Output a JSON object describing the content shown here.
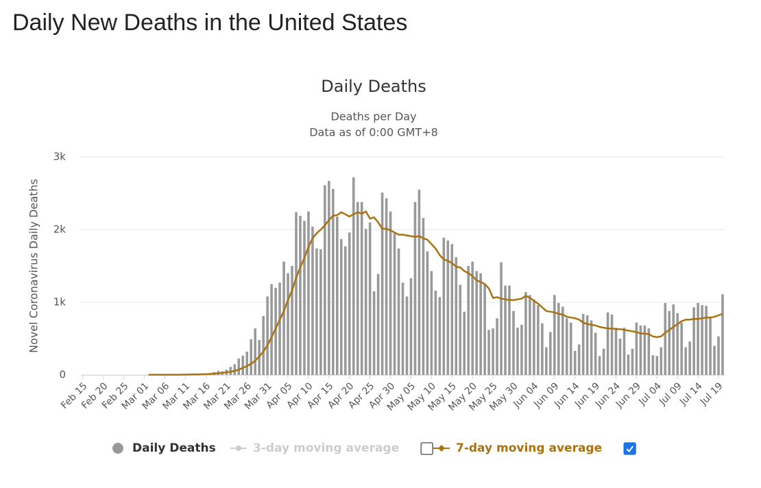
{
  "header": {
    "title": "Daily New Deaths in the United States"
  },
  "chart_data": {
    "type": "bar",
    "title": "Daily Deaths",
    "subtitle": [
      "Deaths per Day",
      "Data as of 0:00 GMT+8"
    ],
    "y_label": "Novel Coronavirus Daily Deaths",
    "ylim": [
      0,
      3000
    ],
    "yticks": [
      0,
      {
        "value": 1000,
        "label": "1k"
      },
      {
        "value": 2000,
        "label": "2k"
      },
      {
        "value": 3000,
        "label": "3k"
      }
    ],
    "grid": true,
    "categories": [
      "Feb 15",
      null,
      null,
      null,
      null,
      "Feb 20",
      null,
      null,
      null,
      null,
      "Feb 25",
      null,
      null,
      null,
      null,
      "Mar 01",
      null,
      null,
      null,
      null,
      "Mar 06",
      null,
      null,
      null,
      null,
      "Mar 11",
      null,
      null,
      null,
      null,
      "Mar 16",
      null,
      null,
      null,
      null,
      "Mar 21",
      null,
      null,
      null,
      null,
      "Mar 26",
      null,
      null,
      null,
      null,
      "Mar 31",
      null,
      null,
      null,
      null,
      "Apr 05",
      null,
      null,
      null,
      null,
      "Apr 10",
      null,
      null,
      null,
      null,
      "Apr 15",
      null,
      null,
      null,
      null,
      "Apr 20",
      null,
      null,
      null,
      null,
      "Apr 25",
      null,
      null,
      null,
      null,
      "Apr 30",
      null,
      null,
      null,
      null,
      "May 05",
      null,
      null,
      null,
      null,
      "May 10",
      null,
      null,
      null,
      null,
      "May 15",
      null,
      null,
      null,
      null,
      "May 20",
      null,
      null,
      null,
      null,
      "May 25",
      null,
      null,
      null,
      null,
      "May 30",
      null,
      null,
      null,
      null,
      "Jun 04",
      null,
      null,
      null,
      null,
      "Jun 09",
      null,
      null,
      null,
      null,
      "Jun 14",
      null,
      null,
      null,
      null,
      "Jun 19",
      null,
      null,
      null,
      null,
      "Jun 24",
      null,
      null,
      null,
      null,
      "Jun 29",
      null,
      null,
      null,
      null,
      "Jul 04",
      null,
      null,
      null,
      null,
      "Jul 09",
      null,
      null,
      null,
      null,
      "Jul 14",
      null,
      null,
      null,
      null,
      "Jul 19",
      null
    ],
    "series": [
      {
        "name": "Daily Deaths",
        "type": "bar",
        "color": "#999999",
        "visible": true,
        "values": [
          0,
          0,
          0,
          0,
          0,
          0,
          0,
          0,
          0,
          0,
          0,
          0,
          0,
          0,
          0,
          1,
          5,
          1,
          4,
          1,
          2,
          3,
          4,
          4,
          6,
          7,
          11,
          10,
          7,
          12,
          18,
          24,
          39,
          55,
          49,
          72,
          110,
          147,
          225,
          265,
          320,
          490,
          640,
          480,
          810,
          1080,
          1250,
          1200,
          1270,
          1560,
          1400,
          1500,
          2240,
          2190,
          2120,
          2250,
          2040,
          1740,
          1730,
          2610,
          2670,
          2560,
          2180,
          1870,
          1770,
          1960,
          2720,
          2380,
          2380,
          2010,
          2100,
          1150,
          1390,
          2510,
          2430,
          2250,
          1950,
          1740,
          1270,
          1080,
          1330,
          2380,
          2550,
          2160,
          1700,
          1430,
          1160,
          1070,
          1890,
          1850,
          1800,
          1620,
          1240,
          870,
          1500,
          1560,
          1430,
          1400,
          1250,
          620,
          640,
          780,
          1550,
          1230,
          1230,
          880,
          650,
          690,
          1140,
          1100,
          1040,
          960,
          710,
          380,
          590,
          1100,
          990,
          940,
          780,
          720,
          330,
          420,
          840,
          820,
          750,
          580,
          260,
          360,
          860,
          830,
          650,
          500,
          650,
          280,
          360,
          720,
          680,
          680,
          640,
          270,
          260,
          380,
          990,
          880,
          970,
          850,
          720,
          380,
          460,
          930,
          990,
          960,
          950,
          780,
          400,
          530,
          1110
        ]
      },
      {
        "name": "3-day moving average",
        "type": "line",
        "color": "#cccccc",
        "visible": false
      },
      {
        "name": "7-day moving average",
        "type": "line",
        "color": "#a8720f",
        "visible": true,
        "values": [
          null,
          null,
          null,
          null,
          null,
          null,
          null,
          null,
          null,
          null,
          null,
          null,
          null,
          null,
          null,
          null,
          1,
          2,
          2,
          2,
          2,
          3,
          3,
          3,
          4,
          5,
          6,
          7,
          8,
          9,
          10,
          13,
          17,
          22,
          29,
          36,
          43,
          56,
          72,
          98,
          122,
          152,
          195,
          255,
          320,
          410,
          520,
          640,
          760,
          880,
          1030,
          1160,
          1340,
          1480,
          1610,
          1760,
          1880,
          1950,
          2000,
          2060,
          2130,
          2190,
          2200,
          2240,
          2210,
          2180,
          2210,
          2240,
          2220,
          2250,
          2150,
          2170,
          2100,
          2010,
          2010,
          1990,
          1960,
          1930,
          1930,
          1920,
          1910,
          1900,
          1910,
          1880,
          1860,
          1800,
          1740,
          1650,
          1590,
          1570,
          1540,
          1490,
          1480,
          1430,
          1400,
          1360,
          1300,
          1280,
          1250,
          1190,
          1060,
          1070,
          1050,
          1040,
          1030,
          1030,
          1040,
          1050,
          1090,
          1060,
          1020,
          980,
          930,
          880,
          870,
          860,
          840,
          830,
          800,
          790,
          780,
          760,
          720,
          700,
          690,
          680,
          660,
          650,
          640,
          640,
          630,
          630,
          620,
          610,
          600,
          590,
          570,
          570,
          560,
          530,
          520,
          530,
          580,
          620,
          660,
          700,
          740,
          760,
          760,
          770,
          770,
          780,
          790,
          790,
          800,
          820,
          840
        ]
      }
    ]
  }
}
